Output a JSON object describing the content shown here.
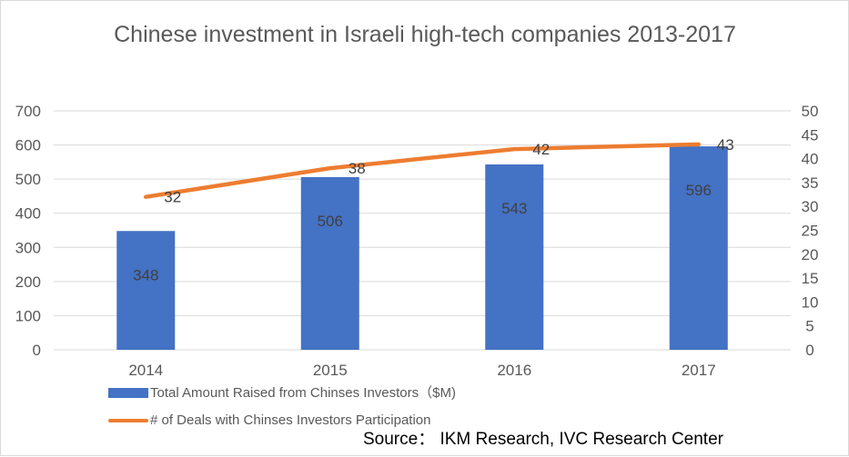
{
  "chart_data": {
    "type": "bar",
    "title": "Chinese investment in Israeli high-tech companies 2013-2017",
    "categories": [
      "2014",
      "2015",
      "2016",
      "2017"
    ],
    "series": [
      {
        "name": "Total Amount Raised from Chinses Investors（$M)",
        "kind": "bar",
        "axis": "left",
        "color": "#4472C4",
        "values": [
          348,
          506,
          543,
          596
        ]
      },
      {
        "name": "# of Deals with Chinses Investors Participation",
        "kind": "line",
        "axis": "right",
        "color": "#ED7D31",
        "values": [
          32,
          38,
          42,
          43
        ]
      }
    ],
    "y_left": {
      "min": 0,
      "max": 700,
      "step": 100
    },
    "y_right": {
      "min": 0,
      "max": 50,
      "step": 5
    },
    "grid": true,
    "legend_position": "bottom-left"
  },
  "source": "Source： IKM Research, IVC Research Center"
}
